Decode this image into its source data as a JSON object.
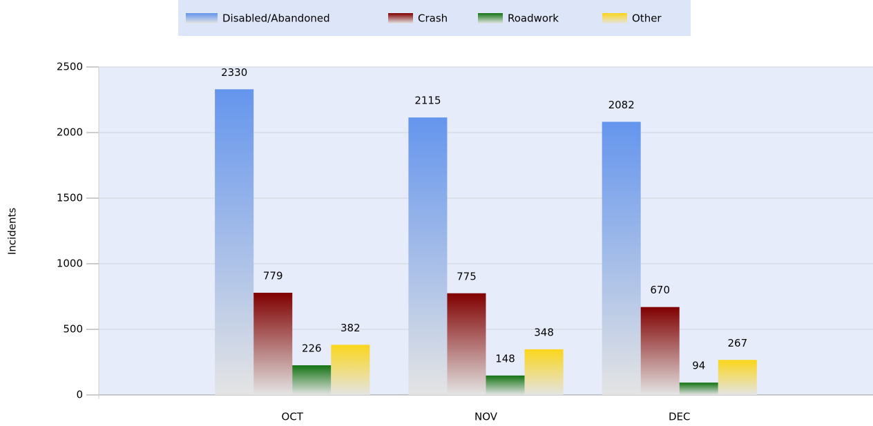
{
  "chart_data": {
    "type": "bar",
    "y_label": "Incidents",
    "categories": [
      "OCT",
      "NOV",
      "DEC"
    ],
    "series": [
      {
        "name": "Disabled/Abandoned",
        "color": "#6495ed",
        "values": [
          2330,
          2115,
          2082
        ]
      },
      {
        "name": "Crash",
        "color": "#800000",
        "values": [
          779,
          775,
          670
        ]
      },
      {
        "name": "Roadwork",
        "color": "#137313",
        "values": [
          226,
          148,
          94
        ]
      },
      {
        "name": "Other",
        "color": "#fad61c",
        "values": [
          382,
          348,
          267
        ]
      }
    ],
    "ylim": [
      0,
      2500
    ],
    "yticks": [
      0,
      500,
      1000,
      1500,
      2000,
      2500
    ],
    "grid": true,
    "legend": "top"
  }
}
